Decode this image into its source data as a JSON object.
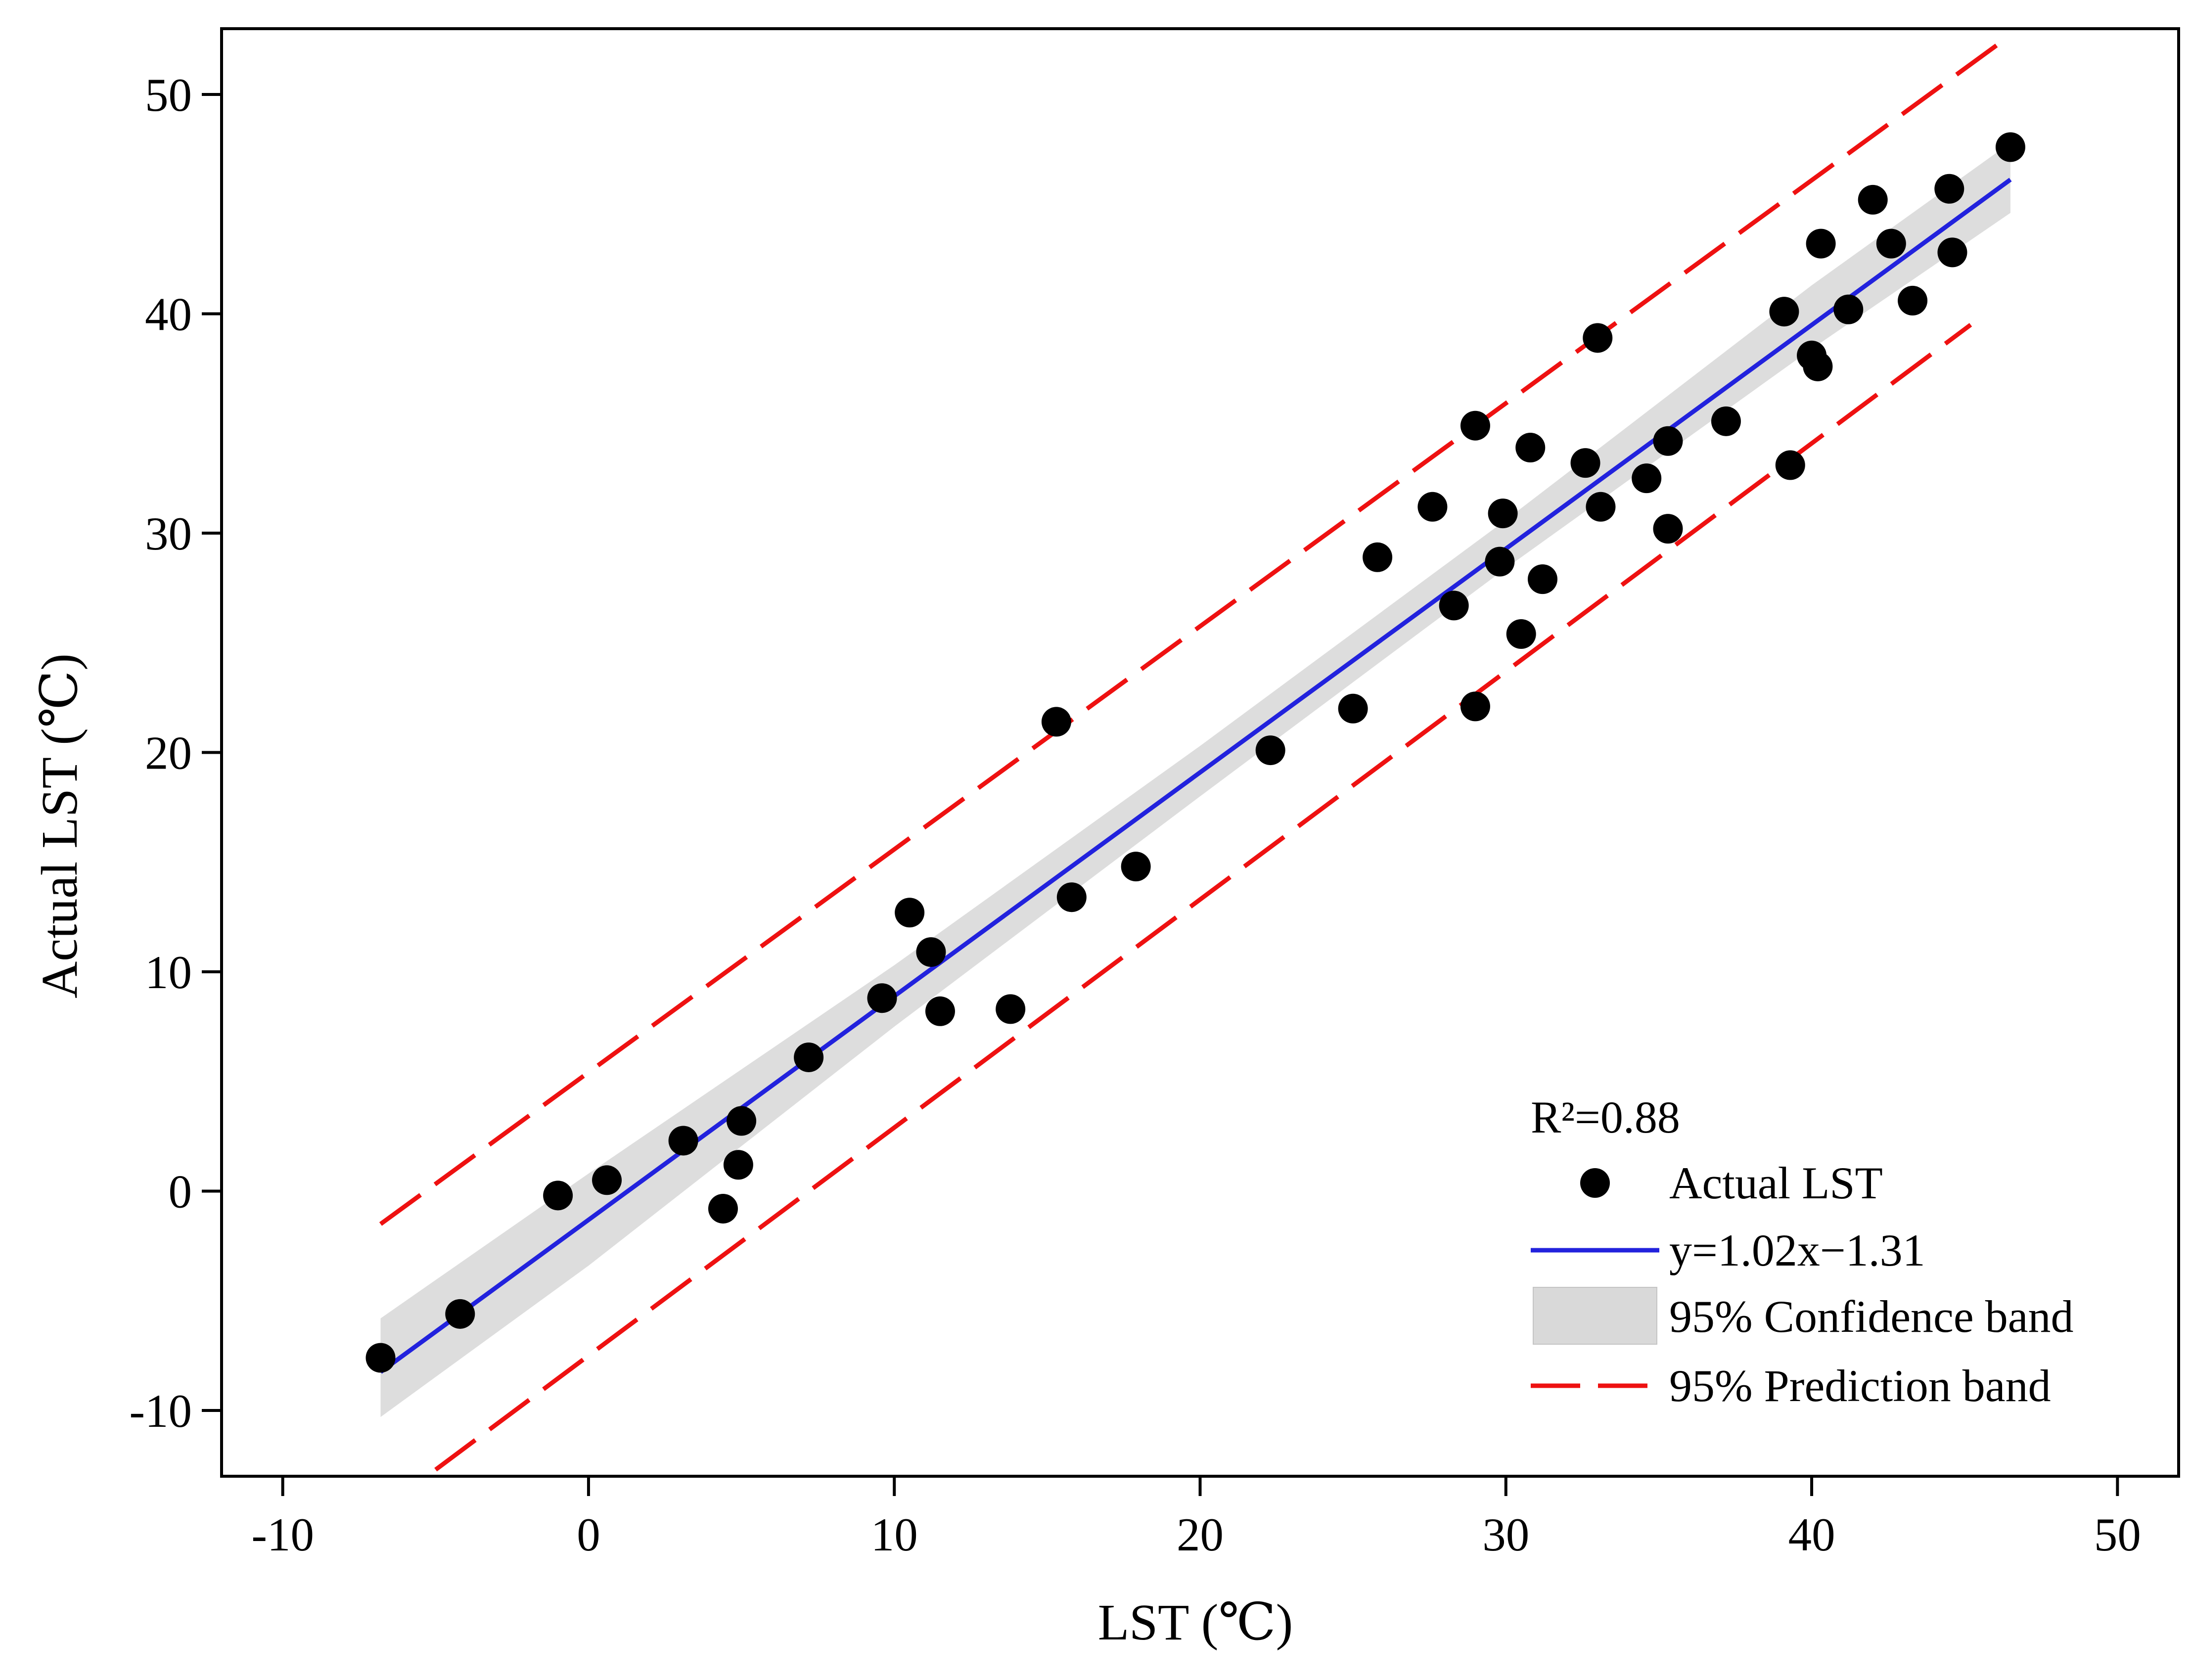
{
  "chart_data": {
    "type": "scatter",
    "xlabel": "LST (℃)",
    "ylabel": "Actual LST (℃)",
    "xlim": [
      -12,
      52
    ],
    "ylim": [
      -13,
      53
    ],
    "x_ticks": [
      -10,
      0,
      10,
      20,
      30,
      40,
      50
    ],
    "y_ticks": [
      -10,
      0,
      10,
      20,
      30,
      40,
      50
    ],
    "x_tick_labels": [
      "-10",
      "0",
      "10",
      "20",
      "30",
      "40",
      "50"
    ],
    "y_tick_labels": [
      "-10",
      "0",
      "10",
      "20",
      "30",
      "40",
      "50"
    ],
    "grid": false,
    "legend_position": "bottom-right",
    "annotation": "R²=0.88",
    "series": [
      {
        "name": "Actual LST",
        "kind": "scatter",
        "color": "#000000",
        "points": [
          [
            -6.8,
            -7.6
          ],
          [
            -4.2,
            -5.6
          ],
          [
            -1.0,
            -0.2
          ],
          [
            0.6,
            0.5
          ],
          [
            3.1,
            2.3
          ],
          [
            4.4,
            -0.8
          ],
          [
            4.9,
            1.2
          ],
          [
            5.0,
            3.2
          ],
          [
            7.2,
            6.1
          ],
          [
            9.6,
            8.8
          ],
          [
            10.5,
            12.7
          ],
          [
            11.2,
            10.9
          ],
          [
            11.5,
            8.2
          ],
          [
            13.8,
            8.3
          ],
          [
            15.3,
            21.4
          ],
          [
            15.8,
            13.4
          ],
          [
            17.9,
            14.8
          ],
          [
            22.3,
            20.1
          ],
          [
            25.0,
            22.0
          ],
          [
            25.8,
            28.9
          ],
          [
            27.6,
            31.2
          ],
          [
            28.3,
            26.7
          ],
          [
            29.0,
            34.9
          ],
          [
            29.0,
            22.1
          ],
          [
            29.8,
            28.7
          ],
          [
            29.9,
            30.9
          ],
          [
            30.5,
            25.4
          ],
          [
            30.8,
            33.9
          ],
          [
            31.2,
            27.9
          ],
          [
            32.6,
            33.2
          ],
          [
            33.0,
            38.9
          ],
          [
            33.1,
            31.2
          ],
          [
            34.6,
            32.5
          ],
          [
            35.3,
            34.2
          ],
          [
            35.3,
            30.2
          ],
          [
            37.2,
            35.1
          ],
          [
            39.1,
            40.1
          ],
          [
            39.3,
            33.1
          ],
          [
            40.0,
            38.1
          ],
          [
            40.2,
            37.6
          ],
          [
            40.3,
            43.2
          ],
          [
            41.2,
            40.2
          ],
          [
            42.0,
            45.2
          ],
          [
            42.6,
            43.2
          ],
          [
            43.3,
            40.6
          ],
          [
            44.5,
            45.7
          ],
          [
            44.6,
            42.8
          ],
          [
            46.5,
            47.6
          ]
        ]
      },
      {
        "name": "y=1.02x−1.31",
        "kind": "line",
        "color": "#2222dd",
        "slope": 1.02,
        "intercept": -1.31,
        "x_range": [
          -6.8,
          46.5
        ]
      },
      {
        "name": "95% Confidence band",
        "kind": "band",
        "color": "#d9d9d9",
        "x": [
          -6.8,
          0,
          10,
          20,
          30,
          40,
          46.5
        ],
        "lower": [
          -10.3,
          -3.4,
          7.5,
          18.0,
          28.4,
          38.4,
          44.6
        ],
        "upper": [
          -5.8,
          0.8,
          10.3,
          20.3,
          30.6,
          41.3,
          47.8
        ]
      },
      {
        "name": "95% Prediction band",
        "kind": "dashed-lines",
        "color": "#ee1111",
        "upper": {
          "x_range": [
            -6.8,
            46.5
          ],
          "y_range": [
            -1.5,
            52.7
          ]
        },
        "lower": {
          "x_range": [
            -5.0,
            45.2
          ],
          "y_range": [
            -12.7,
            39.5
          ]
        }
      }
    ],
    "legend": [
      {
        "label": "Actual LST",
        "symbol": "dot",
        "color": "#000000"
      },
      {
        "label": "y=1.02x−1.31",
        "symbol": "line",
        "color": "#2222dd"
      },
      {
        "label": "95% Confidence band",
        "symbol": "box",
        "color": "#d9d9d9"
      },
      {
        "label": "95% Prediction band",
        "symbol": "dash",
        "color": "#ee1111"
      }
    ]
  }
}
